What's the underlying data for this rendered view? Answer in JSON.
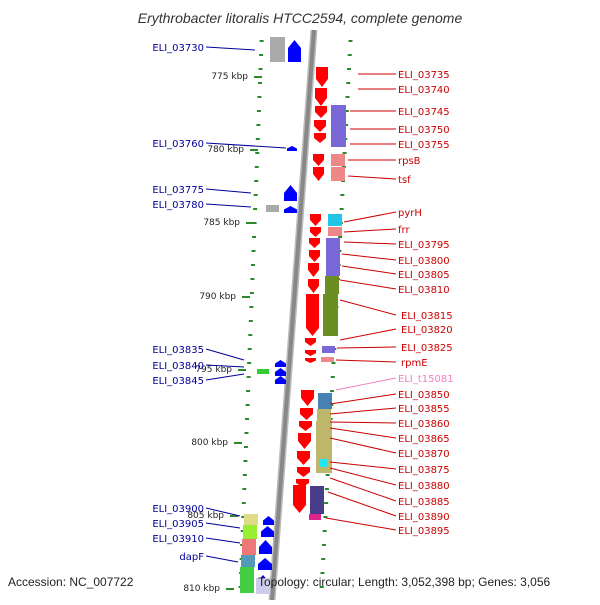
{
  "title": "Erythrobacter litoralis HTCC2594, complete genome",
  "accession": "Accession: NC_007722",
  "topology": "Topology: circular; Length: 3,052,398 bp; Genes: 3,056",
  "colors": {
    "forward_gene": "#ff0000",
    "reverse_gene": "#0000ff",
    "forward_label": "#cc0000",
    "reverse_label": "#000099",
    "trna_label": "#f080c0",
    "genome_line": "#888888",
    "dot_track": "#2a8a2a"
  },
  "scale_labels": [
    "775 kbp",
    "780 kbp",
    "785 kbp",
    "790 kbp",
    "795 kbp",
    "800 kbp",
    "805 kbp",
    "810 kbp"
  ],
  "left_genes": [
    "ELI_03730",
    "ELI_03760",
    "ELI_03775",
    "ELI_03780",
    "ELI_03835",
    "ELI_03840",
    "ELI_03845",
    "ELI_03900",
    "ELI_03905",
    "ELI_03910",
    "dapF"
  ],
  "right_genes": [
    "ELI_03735",
    "ELI_03740",
    "ELI_03745",
    "ELI_03750",
    "ELI_03755",
    "rpsB",
    "tsf",
    "pyrH",
    "frr",
    "ELI_03795",
    "ELI_03800",
    "ELI_03805",
    "ELI_03810",
    "ELI_03815",
    "ELI_03820",
    "ELI_03825",
    "rpmE",
    "ELI_t15081",
    "ELI_03850",
    "ELI_03855",
    "ELI_03860",
    "ELI_03865",
    "ELI_03870",
    "ELI_03875",
    "ELI_03880",
    "ELI_03885",
    "ELI_03890",
    "ELI_03895"
  ]
}
